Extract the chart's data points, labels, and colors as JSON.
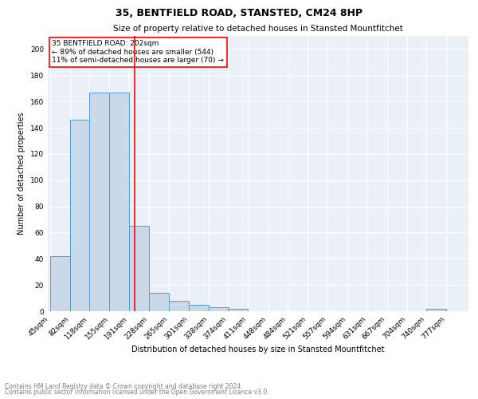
{
  "title": "35, BENTFIELD ROAD, STANSTED, CM24 8HP",
  "subtitle": "Size of property relative to detached houses in Stansted Mountfitchet",
  "xlabel": "Distribution of detached houses by size in Stansted Mountfitchet",
  "ylabel": "Number of detached properties",
  "footnote1": "Contains HM Land Registry data © Crown copyright and database right 2024.",
  "footnote2": "Contains public sector information licensed under the Open Government Licence v3.0.",
  "annotation_line1": "35 BENTFIELD ROAD: 202sqm",
  "annotation_line2": "← 89% of detached houses are smaller (544)",
  "annotation_line3": "11% of semi-detached houses are larger (70) →",
  "bar_edges": [
    45,
    82,
    118,
    155,
    191,
    228,
    265,
    301,
    338,
    374,
    411,
    448,
    484,
    521,
    557,
    594,
    631,
    667,
    704,
    740,
    777
  ],
  "bar_heights": [
    42,
    146,
    167,
    167,
    65,
    14,
    8,
    5,
    3,
    2,
    0,
    0,
    0,
    0,
    0,
    0,
    0,
    0,
    0,
    2
  ],
  "bar_color": "#c9d9e8",
  "bar_edgecolor": "#5b9bd5",
  "redline_x": 202,
  "ylim": [
    0,
    210
  ],
  "yticks": [
    0,
    20,
    40,
    60,
    80,
    100,
    120,
    140,
    160,
    180,
    200
  ],
  "bg_color": "#eaf0f8",
  "annotation_box_color": "white",
  "annotation_box_edgecolor": "red"
}
